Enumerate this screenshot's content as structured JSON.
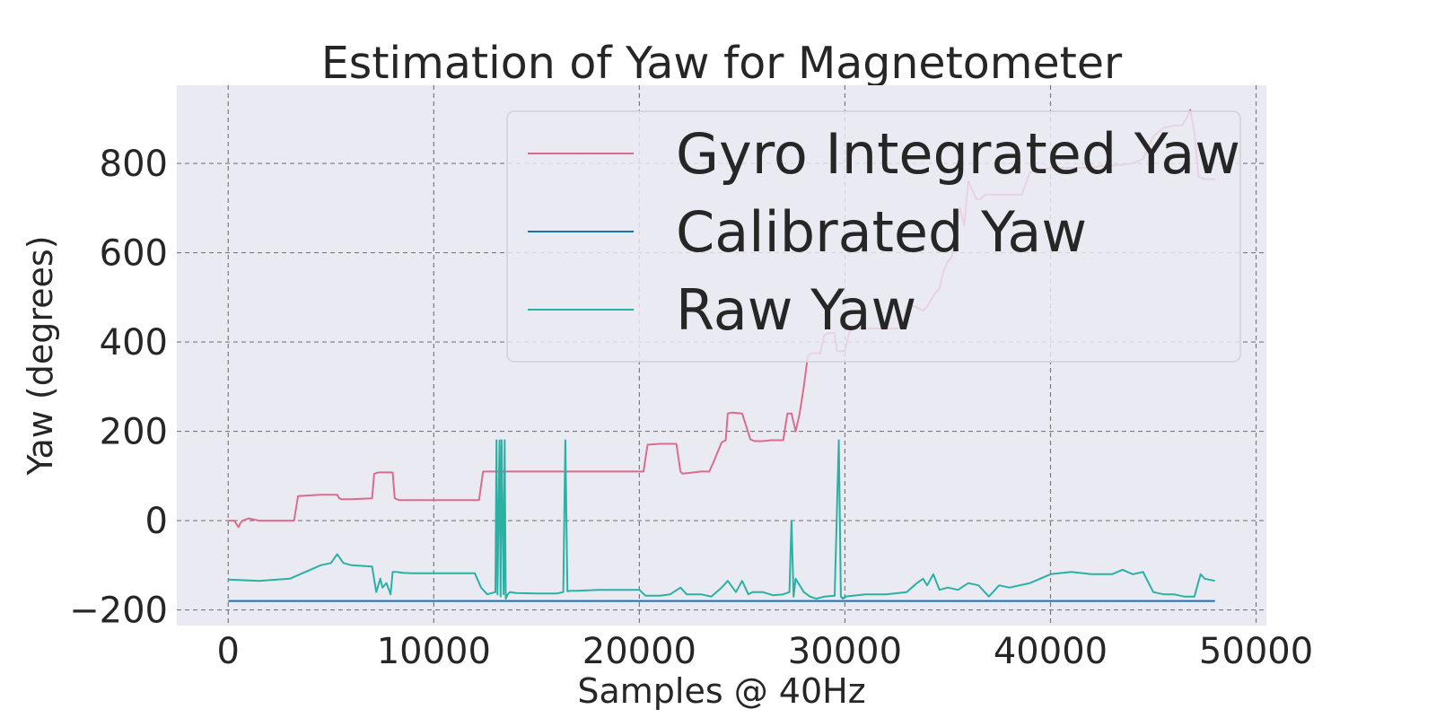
{
  "chart_data": {
    "type": "line",
    "title": "Estimation of Yaw for Magnetometer",
    "xlabel": "Samples @ 40Hz",
    "ylabel": "Yaw (degrees)",
    "xlim": [
      -2500,
      50500
    ],
    "ylim": [
      -235,
      975
    ],
    "xticks": [
      0,
      10000,
      20000,
      30000,
      40000,
      50000
    ],
    "xtick_labels": [
      "0",
      "10000",
      "20000",
      "30000",
      "40000",
      "50000"
    ],
    "yticks": [
      -200,
      0,
      200,
      400,
      600,
      800
    ],
    "ytick_labels": [
      "−200",
      "0",
      "200",
      "400",
      "600",
      "800"
    ],
    "grid": true,
    "legend_position": "upper-right",
    "colors": {
      "background": "#eaeaf2",
      "gyro": "#db6c8f",
      "calibrated": "#1f6fb4",
      "raw": "#2ab1a4"
    },
    "series": [
      {
        "name": "Gyro Integrated Yaw",
        "color": "#db6c8f",
        "x": [
          0,
          300,
          500,
          600,
          700,
          1000,
          1500,
          2000,
          2500,
          3000,
          3200,
          3400,
          4500,
          5300,
          5400,
          5500,
          6000,
          7000,
          7100,
          7300,
          8000,
          8100,
          8300,
          9000,
          10000,
          11000,
          12000,
          12200,
          12400,
          13000,
          14000,
          15000,
          16000,
          17000,
          18000,
          19000,
          20000,
          20200,
          20400,
          21000,
          21500,
          21800,
          22000,
          22100,
          23000,
          23400,
          23600,
          24000,
          24200,
          24300,
          24500,
          25000,
          25400,
          25600,
          26000,
          26400,
          26800,
          27000,
          27200,
          27400,
          27600,
          27800,
          28000,
          28200,
          28400,
          28600,
          28800,
          29000,
          29200,
          29500,
          29600,
          30000,
          30200,
          30400,
          30600,
          31000,
          32000,
          32400,
          32600,
          32800,
          33000,
          33200,
          33400,
          33800,
          34000,
          34400,
          34600,
          34800,
          35000,
          35200,
          35400,
          35600,
          35800,
          36000,
          36200,
          36400,
          36600,
          36800,
          37000,
          37500,
          38000,
          38600,
          39000,
          39400,
          39600,
          40000,
          41000,
          42000,
          42500,
          43000,
          44000,
          44500,
          45000,
          45500,
          46000,
          46400,
          46600,
          46800,
          47000,
          47200,
          47500,
          48000
        ],
        "y": [
          0,
          0,
          -15,
          -5,
          0,
          5,
          0,
          0,
          0,
          0,
          0,
          55,
          58,
          58,
          50,
          48,
          48,
          50,
          105,
          108,
          108,
          50,
          46,
          46,
          46,
          46,
          46,
          46,
          110,
          110,
          110,
          110,
          110,
          110,
          110,
          110,
          110,
          110,
          170,
          172,
          172,
          172,
          110,
          105,
          110,
          110,
          130,
          175,
          180,
          240,
          242,
          240,
          182,
          178,
          178,
          180,
          180,
          180,
          240,
          240,
          200,
          240,
          300,
          370,
          375,
          375,
          375,
          415,
          420,
          420,
          380,
          380,
          420,
          430,
          430,
          430,
          430,
          430,
          430,
          440,
          480,
          480,
          480,
          470,
          480,
          510,
          520,
          560,
          580,
          590,
          650,
          700,
          660,
          760,
          740,
          720,
          720,
          730,
          730,
          730,
          730,
          730,
          780,
          785,
          785,
          790,
          790,
          790,
          795,
          795,
          800,
          810,
          860,
          880,
          885,
          885,
          900,
          920,
          870,
          770,
          765,
          765
        ]
      },
      {
        "name": "Calibrated Yaw",
        "color": "#1f6fb4",
        "x": [
          0,
          48000
        ],
        "y": [
          -180,
          -180
        ]
      },
      {
        "name": "Raw Yaw",
        "color": "#2ab1a4",
        "x": [
          0,
          1500,
          3000,
          3500,
          4000,
          4500,
          5000,
          5300,
          5600,
          6000,
          7000,
          7200,
          7400,
          7500,
          7700,
          7900,
          8000,
          8200,
          8500,
          9000,
          10000,
          11000,
          12000,
          12300,
          12600,
          13000,
          13050,
          13100,
          13200,
          13250,
          13300,
          13400,
          13450,
          13500,
          13600,
          13700,
          14000,
          15000,
          16000,
          16300,
          16400,
          16500,
          16700,
          17000,
          18000,
          19000,
          20000,
          20300,
          21000,
          21500,
          22000,
          22300,
          23000,
          23500,
          24000,
          24300,
          24700,
          25000,
          25300,
          25500,
          26000,
          26500,
          27000,
          27300,
          27400,
          27500,
          27600,
          28000,
          28300,
          28600,
          29000,
          29500,
          29700,
          29800,
          29900,
          30000,
          31000,
          32000,
          33000,
          33500,
          33800,
          34000,
          34300,
          34600,
          35000,
          35500,
          36000,
          36500,
          37000,
          37500,
          38000,
          39000,
          40000,
          41000,
          42000,
          43000,
          43500,
          44000,
          44500,
          45000,
          45500,
          46000,
          46500,
          47000,
          47300,
          47500,
          48000
        ],
        "y": [
          -132,
          -135,
          -130,
          -120,
          -110,
          -100,
          -95,
          -75,
          -95,
          -100,
          -103,
          -160,
          -130,
          -150,
          -140,
          -165,
          -115,
          -115,
          -117,
          -118,
          -118,
          -118,
          -118,
          -150,
          -165,
          -160,
          180,
          -165,
          180,
          -170,
          180,
          -165,
          180,
          -175,
          -165,
          -160,
          -162,
          -163,
          -163,
          -160,
          180,
          -158,
          -157,
          -157,
          -155,
          -155,
          -155,
          -168,
          -168,
          -165,
          -150,
          -165,
          -165,
          -170,
          -150,
          -135,
          -160,
          -135,
          -165,
          -160,
          -160,
          -167,
          -165,
          -160,
          0,
          -170,
          -130,
          -160,
          -170,
          -175,
          -170,
          -168,
          180,
          -170,
          -175,
          -170,
          -165,
          -165,
          -160,
          -140,
          -130,
          -145,
          -120,
          -155,
          -150,
          -155,
          -140,
          -145,
          -170,
          -145,
          -150,
          -140,
          -120,
          -115,
          -120,
          -120,
          -110,
          -120,
          -115,
          -160,
          -165,
          -165,
          -170,
          -170,
          -120,
          -130,
          -135
        ]
      }
    ]
  }
}
